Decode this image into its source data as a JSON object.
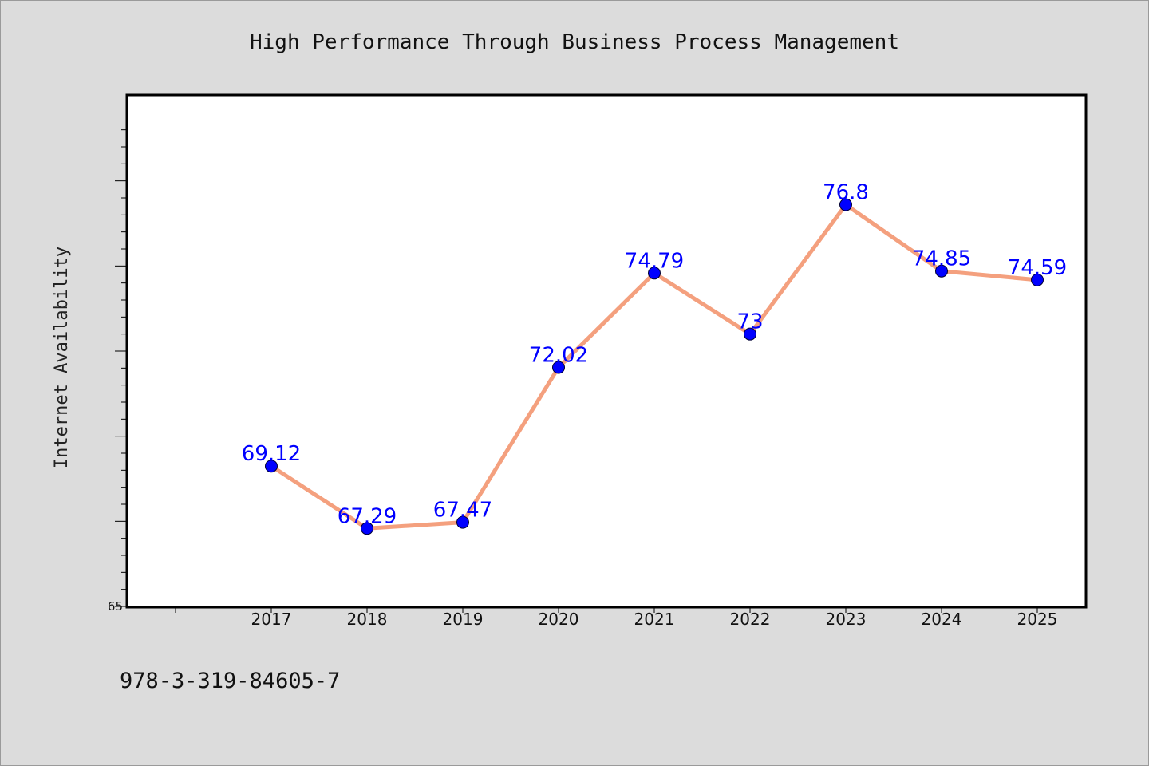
{
  "chart_data": {
    "type": "line",
    "title": "High Performance Through Business Process Management",
    "ylabel": "Internet Availability",
    "xlabel": "",
    "categories": [
      "2017",
      "2018",
      "2019",
      "2020",
      "2021",
      "2022",
      "2023",
      "2024",
      "2025"
    ],
    "series": [
      {
        "values": [
          69.12,
          67.29,
          67.47,
          72.02,
          74.79,
          73,
          76.8,
          74.85,
          74.59
        ],
        "data_labels": [
          "69.12",
          "67.29",
          "67.47",
          "72.02",
          "74.79",
          "73",
          "76.8",
          "74.85",
          "74.59"
        ],
        "line_color": "#f4a07e",
        "marker_color": "#0000ff"
      }
    ],
    "ylim": [
      65,
      80
    ],
    "y_tick_labels": [
      "65"
    ],
    "grid": false,
    "legend": "none"
  },
  "footer": {
    "isbn": "978-3-319-84605-7"
  }
}
